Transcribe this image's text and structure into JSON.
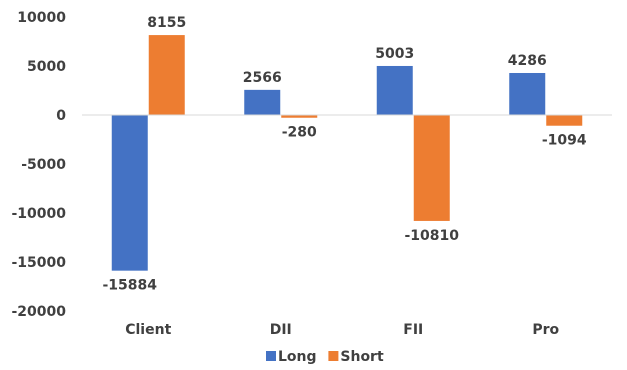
{
  "chart_data": {
    "type": "bar",
    "categories": [
      "Client",
      "DII",
      "FII",
      "Pro"
    ],
    "series": [
      {
        "name": "Long",
        "color": "#4472C4",
        "values": [
          -15884,
          2566,
          5003,
          4286
        ]
      },
      {
        "name": "Short",
        "color": "#ED7D31",
        "values": [
          8155,
          -280,
          -10810,
          -1094
        ]
      }
    ],
    "ylim": [
      -20000,
      10000
    ],
    "yticks": [
      10000,
      5000,
      0,
      -5000,
      -10000,
      -15000,
      -20000
    ],
    "grid": false,
    "legend_position": "bottom-center",
    "title": "",
    "xlabel": "",
    "ylabel": ""
  }
}
